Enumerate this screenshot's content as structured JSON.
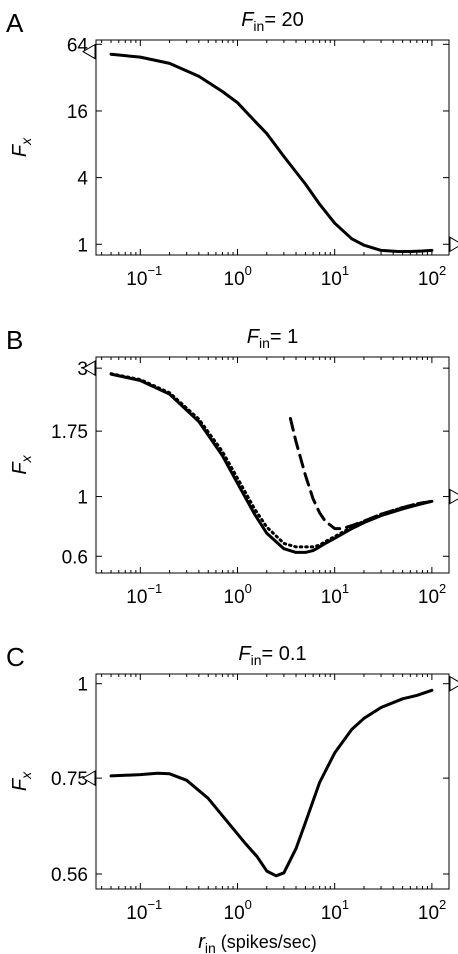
{
  "chart_data": [
    {
      "type": "line",
      "panel_label": "A",
      "title": {
        "main": "F",
        "sub": "in",
        "rest": "= 20"
      },
      "ylabel": {
        "main": "F",
        "sub": "x"
      },
      "xscale": "log",
      "yscale": "log",
      "xlim": [
        0.035,
        150
      ],
      "ylim": [
        0.8,
        70
      ],
      "xticks": [
        {
          "value": 0.1,
          "base": "10",
          "exp": "−1"
        },
        {
          "value": 1,
          "base": "10",
          "exp": "0"
        },
        {
          "value": 10,
          "base": "10",
          "exp": "1"
        },
        {
          "value": 100,
          "base": "10",
          "exp": "2"
        }
      ],
      "yticks": [
        {
          "value": 1,
          "label": "1"
        },
        {
          "value": 4,
          "label": "4"
        },
        {
          "value": 16,
          "label": "16"
        },
        {
          "value": 64,
          "label": "64"
        }
      ],
      "series": [
        {
          "style": "solid",
          "x": [
            0.05,
            0.1,
            0.2,
            0.4,
            0.7,
            1,
            1.5,
            2,
            3,
            4,
            5,
            7,
            10,
            15,
            20,
            30,
            45,
            60,
            80,
            100
          ],
          "y": [
            52,
            49,
            43,
            33,
            24,
            19,
            13,
            10,
            6.2,
            4.5,
            3.5,
            2.3,
            1.55,
            1.12,
            0.98,
            0.88,
            0.86,
            0.86,
            0.87,
            0.88
          ]
        }
      ],
      "markers": [
        {
          "side": "left",
          "y": 55
        },
        {
          "side": "right",
          "y": 1
        }
      ]
    },
    {
      "type": "line",
      "panel_label": "B",
      "title": {
        "main": "F",
        "sub": "in",
        "rest": "= 1"
      },
      "ylabel": {
        "main": "F",
        "sub": "x"
      },
      "xscale": "log",
      "yscale": "log",
      "xlim": [
        0.035,
        150
      ],
      "ylim": [
        0.52,
        3.3
      ],
      "xticks": [
        {
          "value": 0.1,
          "base": "10",
          "exp": "−1"
        },
        {
          "value": 1,
          "base": "10",
          "exp": "0"
        },
        {
          "value": 10,
          "base": "10",
          "exp": "1"
        },
        {
          "value": 100,
          "base": "10",
          "exp": "2"
        }
      ],
      "yticks": [
        {
          "value": 0.6,
          "label": "0.6"
        },
        {
          "value": 1,
          "label": "1"
        },
        {
          "value": 1.75,
          "label": "1.75"
        },
        {
          "value": 3,
          "label": "3"
        }
      ],
      "series": [
        {
          "style": "solid",
          "x": [
            0.05,
            0.1,
            0.2,
            0.4,
            0.7,
            1,
            1.5,
            2,
            3,
            4,
            5,
            6,
            7,
            8,
            10,
            15,
            20,
            30,
            50,
            70,
            100
          ],
          "y": [
            2.85,
            2.7,
            2.4,
            1.9,
            1.42,
            1.12,
            0.86,
            0.73,
            0.64,
            0.62,
            0.62,
            0.63,
            0.65,
            0.67,
            0.7,
            0.76,
            0.8,
            0.85,
            0.9,
            0.93,
            0.96
          ]
        },
        {
          "style": "dotted",
          "x": [
            0.05,
            0.1,
            0.2,
            0.4,
            0.7,
            1,
            1.5,
            2,
            3,
            4,
            5,
            6,
            7,
            8,
            10,
            15,
            20,
            30,
            50,
            70,
            100
          ],
          "y": [
            2.86,
            2.72,
            2.43,
            1.94,
            1.47,
            1.17,
            0.9,
            0.77,
            0.67,
            0.65,
            0.65,
            0.65,
            0.66,
            0.68,
            0.71,
            0.77,
            0.81,
            0.86,
            0.91,
            0.94,
            0.96
          ]
        },
        {
          "style": "dashed",
          "x": [
            3.5,
            4,
            5,
            6,
            7,
            8,
            10,
            12,
            15,
            20,
            30,
            50,
            70,
            100
          ],
          "y": [
            1.95,
            1.6,
            1.2,
            0.98,
            0.87,
            0.81,
            0.76,
            0.76,
            0.78,
            0.81,
            0.86,
            0.91,
            0.94,
            0.96
          ]
        }
      ],
      "markers": [
        {
          "side": "left",
          "y": 3.0
        },
        {
          "side": "right",
          "y": 1
        }
      ]
    },
    {
      "type": "line",
      "panel_label": "C",
      "title": {
        "main": "F",
        "sub": "in",
        "rest": "= 0.1"
      },
      "ylabel": {
        "main": "F",
        "sub": "x"
      },
      "xlabel": {
        "main": "r",
        "sub": "in",
        "rest": "(spikes/sec)"
      },
      "xscale": "log",
      "yscale": "log",
      "xlim": [
        0.035,
        150
      ],
      "ylim": [
        0.535,
        1.03
      ],
      "xticks": [
        {
          "value": 0.1,
          "base": "10",
          "exp": "−1"
        },
        {
          "value": 1,
          "base": "10",
          "exp": "0"
        },
        {
          "value": 10,
          "base": "10",
          "exp": "1"
        },
        {
          "value": 100,
          "base": "10",
          "exp": "2"
        }
      ],
      "yticks": [
        {
          "value": 0.56,
          "label": "0.56"
        },
        {
          "value": 0.75,
          "label": "0.75"
        },
        {
          "value": 1,
          "label": "1"
        }
      ],
      "series": [
        {
          "style": "solid",
          "x": [
            0.05,
            0.1,
            0.15,
            0.2,
            0.3,
            0.5,
            0.8,
            1.2,
            1.6,
            2,
            2.5,
            3,
            4,
            5,
            7,
            10,
            15,
            20,
            30,
            50,
            70,
            100
          ],
          "y": [
            0.755,
            0.758,
            0.761,
            0.76,
            0.745,
            0.705,
            0.655,
            0.615,
            0.59,
            0.565,
            0.557,
            0.562,
            0.605,
            0.655,
            0.74,
            0.81,
            0.87,
            0.9,
            0.93,
            0.955,
            0.965,
            0.98
          ]
        }
      ],
      "markers": [
        {
          "side": "left",
          "y": 0.75
        },
        {
          "side": "right",
          "y": 1
        }
      ]
    }
  ]
}
